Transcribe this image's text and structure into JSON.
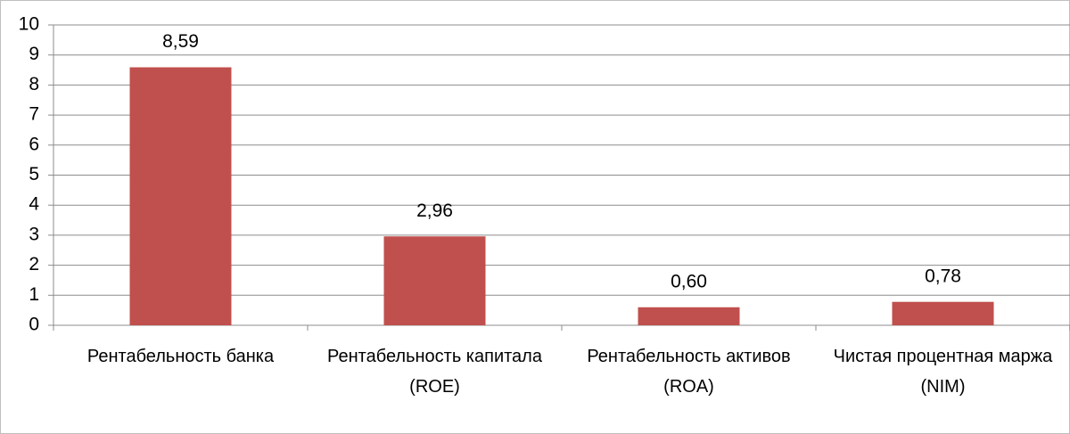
{
  "chart_data": {
    "type": "bar",
    "categories": [
      "Рентабельность банка",
      "Рентабельность капитала (ROE)",
      "Рентабельность активов (ROA)",
      "Чистая процентная маржа (NIM)"
    ],
    "values": [
      8.59,
      2.96,
      0.6,
      0.78
    ],
    "value_labels": [
      "8,59",
      "2,96",
      "0,60",
      "0,78"
    ],
    "color": "#c0504d",
    "ylim": [
      0,
      10
    ],
    "yticks": [
      0,
      1,
      2,
      3,
      4,
      5,
      6,
      7,
      8,
      9,
      10
    ],
    "grid": true
  }
}
